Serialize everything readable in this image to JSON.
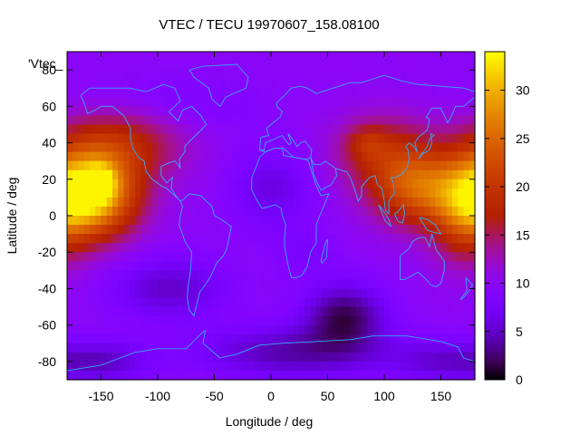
{
  "chart_data": {
    "type": "heatmap",
    "title": "VTEC / TECU 19970607_158.08100",
    "xlabel": "Longitude / deg",
    "ylabel": "Latitude / deg",
    "key_label": "'Vtec_",
    "xlim": [
      -180,
      180
    ],
    "ylim": [
      -90,
      90
    ],
    "x_ticks": [
      -150,
      -100,
      -50,
      0,
      50,
      100,
      150
    ],
    "x_tick_labels": [
      "-150",
      "-100",
      "-50",
      "0",
      "50",
      "100",
      "150"
    ],
    "y_ticks": [
      -80,
      -60,
      -40,
      -20,
      0,
      20,
      40,
      60,
      80
    ],
    "y_tick_labels": [
      "-80",
      "-60",
      "-40",
      "-20",
      "0",
      "20",
      "40",
      "60",
      "80"
    ],
    "colorbar": {
      "range": [
        0,
        34
      ],
      "ticks": [
        0,
        5,
        10,
        15,
        20,
        25,
        30
      ],
      "tick_labels": [
        "0",
        "5",
        "10",
        "15",
        "20",
        "25",
        "30"
      ]
    },
    "grid": false,
    "colormap": "black-purple-red-orange-yellow",
    "background_level": 10,
    "features": [
      {
        "lon": -160,
        "lat": 12,
        "sigmaLon": 28,
        "sigmaLat": 16,
        "amp": 24
      },
      {
        "lon": -150,
        "lat": 18,
        "sigmaLon": 8,
        "sigmaLat": 6,
        "amp": 8
      },
      {
        "lon": -135,
        "lat": 40,
        "sigmaLon": 40,
        "sigmaLat": 14,
        "amp": 8
      },
      {
        "lon": 130,
        "lat": 15,
        "sigmaLon": 28,
        "sigmaLat": 14,
        "amp": 13
      },
      {
        "lon": 170,
        "lat": 0,
        "sigmaLon": 20,
        "sigmaLat": 18,
        "amp": 8
      },
      {
        "lon": 100,
        "lat": 35,
        "sigmaLon": 30,
        "sigmaLat": 14,
        "amp": 7
      },
      {
        "lon": 85,
        "lat": 40,
        "sigmaLon": 12,
        "sigmaLat": 6,
        "amp": 4
      },
      {
        "lon": -100,
        "lat": 60,
        "sigmaLon": 60,
        "sigmaLat": 12,
        "amp": -2
      },
      {
        "lon": 0,
        "lat": 15,
        "sigmaLon": 25,
        "sigmaLat": 15,
        "amp": -4
      },
      {
        "lon": -90,
        "lat": -40,
        "sigmaLon": 35,
        "sigmaLat": 12,
        "amp": -5
      },
      {
        "lon": 65,
        "lat": -55,
        "sigmaLon": 25,
        "sigmaLat": 12,
        "amp": -8
      },
      {
        "lon": 20,
        "lat": -75,
        "sigmaLon": 60,
        "sigmaLat": 10,
        "amp": -6
      },
      {
        "lon": -150,
        "lat": -80,
        "sigmaLon": 30,
        "sigmaLat": 8,
        "amp": -5
      },
      {
        "lon": 150,
        "lat": -80,
        "sigmaLon": 30,
        "sigmaLat": 8,
        "amp": -4
      },
      {
        "lon": 30,
        "lat": -20,
        "sigmaLon": 20,
        "sigmaLat": 10,
        "amp": -2
      }
    ]
  }
}
